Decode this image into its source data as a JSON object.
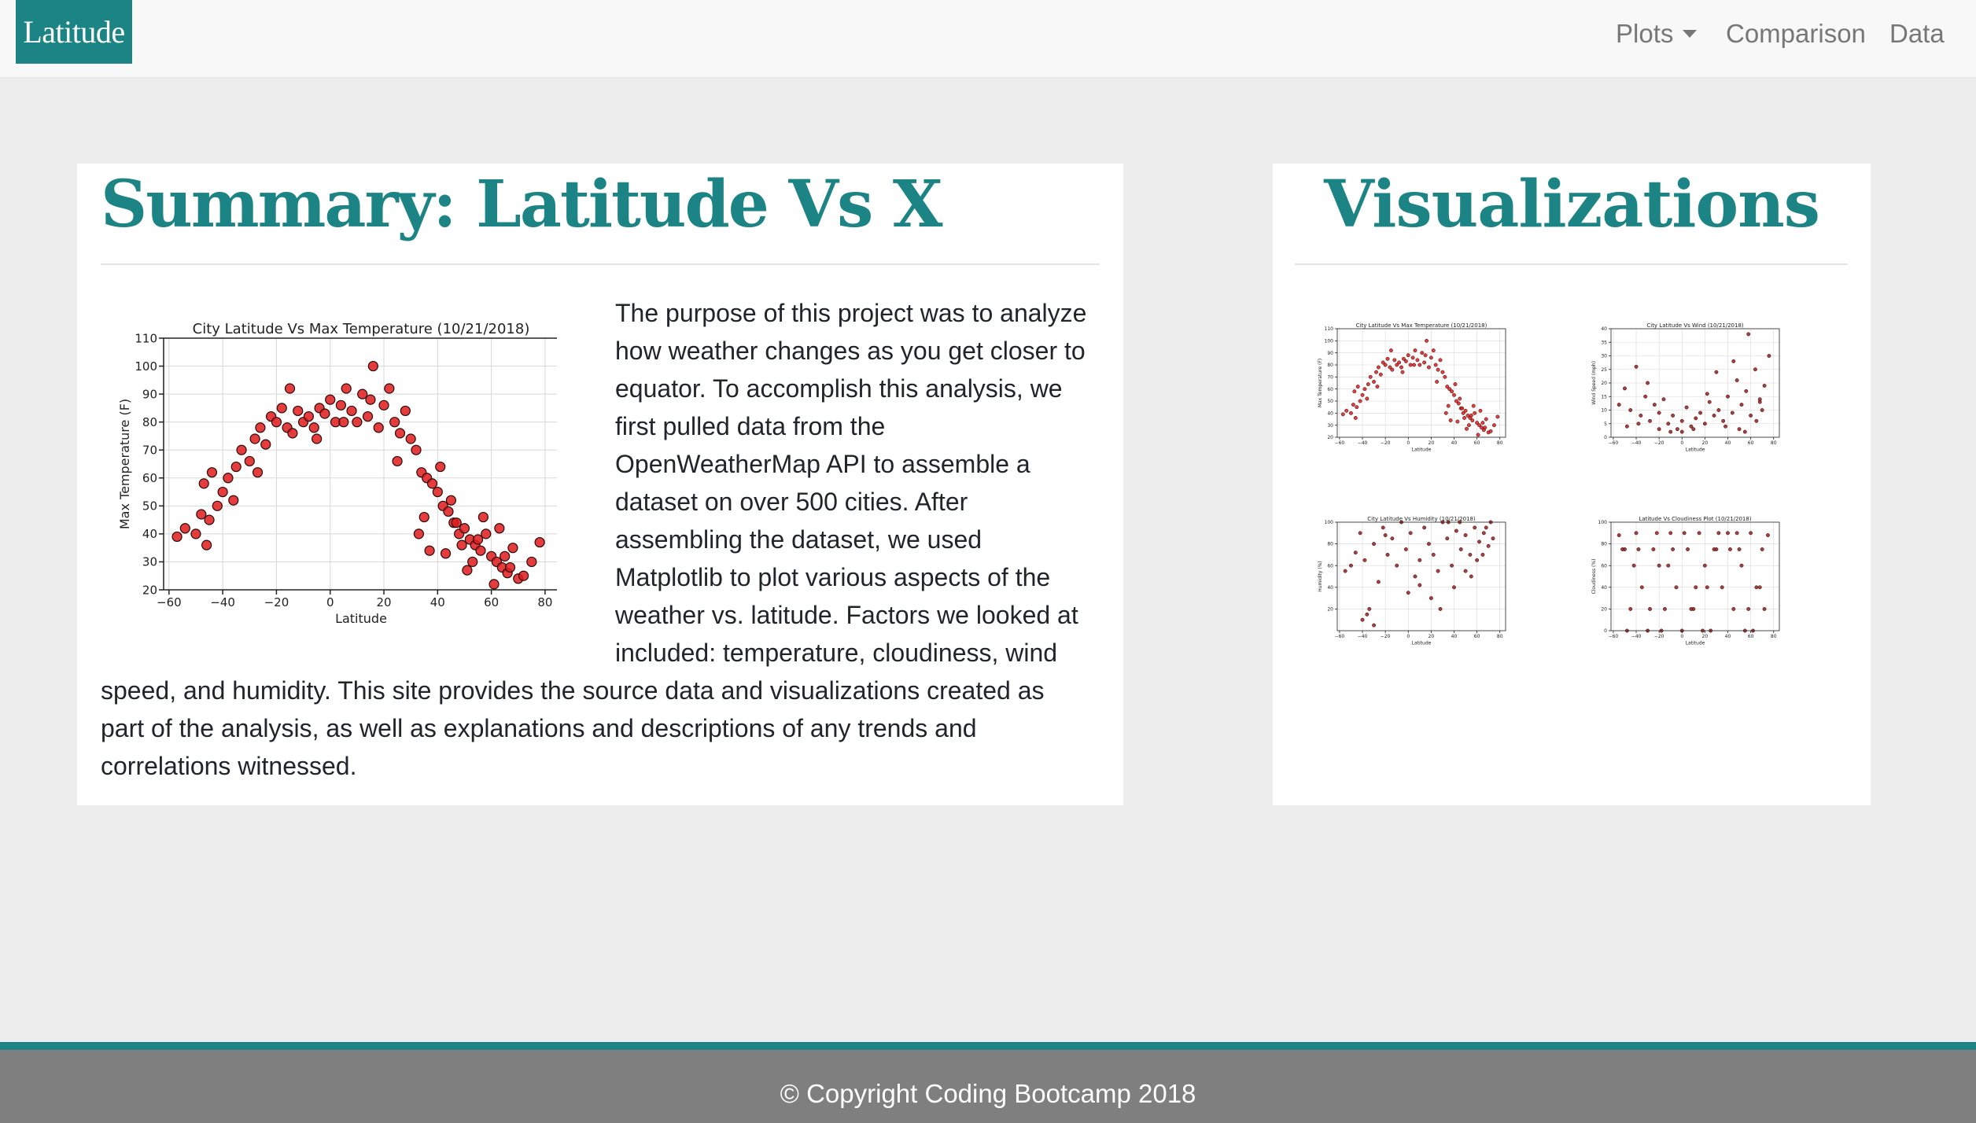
{
  "navbar": {
    "brand": "Latitude",
    "items": [
      {
        "label": "Plots",
        "has_dropdown": true
      },
      {
        "label": "Comparison"
      },
      {
        "label": "Data"
      }
    ]
  },
  "summary": {
    "title": "Summary: Latitude Vs X",
    "paragraph_lines": [
      "The purpose of this project was to analyze",
      "how weather changes as you get closer to",
      "equator. To accomplish this analysis, we",
      "first pulled data from the",
      "OpenWeatherMap API to assemble a",
      "dataset on over 500 cities. After",
      "assembling the dataset, we used",
      "Matplotlib to plot various aspects of the",
      "weather vs. latitude. Factors we looked at",
      "included: temperature, cloudiness, wind",
      "speed, and humidity. This site provides the source data and visualizations created as",
      "part of the analysis, as well as explanations and descriptions of any trends and",
      "correlations witnessed."
    ]
  },
  "visualizations": {
    "title": "Visualizations"
  },
  "chart_data": [
    {
      "id": "temp",
      "type": "scatter",
      "title": "City Latitude Vs Max Temperature (10/21/2018)",
      "xlabel": "Latitude",
      "ylabel": "Max Temperature (F)",
      "xlim": [
        -62,
        85
      ],
      "ylim": [
        20,
        110
      ],
      "xticks": [
        -60,
        -40,
        -20,
        0,
        20,
        40,
        60,
        80
      ],
      "yticks": [
        20,
        30,
        40,
        50,
        60,
        70,
        80,
        90,
        100,
        110
      ],
      "grid": true,
      "marker_color": "#e01b1b",
      "x": [
        -57,
        -54,
        -50,
        -48,
        -47,
        -45,
        -44,
        -42,
        -40,
        -38,
        -35,
        -33,
        -30,
        -28,
        -26,
        -24,
        -22,
        -20,
        -18,
        -16,
        -14,
        -12,
        -10,
        -8,
        -6,
        -4,
        -2,
        0,
        2,
        4,
        6,
        8,
        10,
        12,
        14,
        16,
        18,
        20,
        22,
        24,
        26,
        28,
        30,
        32,
        34,
        36,
        38,
        40,
        42,
        44,
        46,
        48,
        50,
        52,
        54,
        56,
        58,
        60,
        62,
        64,
        66,
        68,
        70,
        72,
        75,
        78,
        -46,
        -36,
        -27,
        -15,
        -5,
        5,
        15,
        25,
        35,
        45,
        55,
        65,
        43,
        47,
        53,
        57,
        61,
        63,
        67,
        33,
        37,
        41,
        49,
        51
      ],
      "y": [
        39,
        42,
        40,
        47,
        58,
        45,
        62,
        50,
        55,
        60,
        64,
        70,
        66,
        74,
        78,
        72,
        82,
        80,
        85,
        78,
        76,
        84,
        80,
        82,
        78,
        85,
        83,
        88,
        80,
        86,
        92,
        84,
        80,
        90,
        82,
        100,
        78,
        86,
        92,
        80,
        76,
        84,
        74,
        70,
        62,
        60,
        58,
        55,
        50,
        48,
        44,
        40,
        42,
        38,
        36,
        34,
        40,
        32,
        30,
        28,
        26,
        35,
        24,
        25,
        30,
        37,
        36,
        52,
        62,
        92,
        74,
        80,
        88,
        66,
        46,
        52,
        38,
        32,
        33,
        44,
        30,
        46,
        22,
        42,
        28,
        40,
        34,
        64,
        36,
        27
      ]
    },
    {
      "id": "wind",
      "type": "scatter",
      "title": "City Latitude Vs Wind (10/21/2018)",
      "xlabel": "Latitude",
      "ylabel": "Wind Speed (mph)",
      "xlim": [
        -62,
        85
      ],
      "ylim": [
        0,
        40
      ],
      "xticks": [
        -60,
        -40,
        -20,
        0,
        20,
        40,
        60,
        80
      ],
      "yticks": [
        0,
        5,
        10,
        15,
        20,
        25,
        30,
        35,
        40
      ],
      "grid": true,
      "marker_color": "#9b1c1c",
      "x": [
        -55,
        -50,
        -45,
        -40,
        -36,
        -32,
        -28,
        -24,
        -20,
        -16,
        -12,
        -8,
        -4,
        0,
        4,
        8,
        12,
        16,
        20,
        24,
        28,
        32,
        36,
        40,
        44,
        48,
        52,
        56,
        60,
        64,
        68,
        72,
        76,
        -48,
        -30,
        -10,
        10,
        30,
        50,
        70,
        58,
        -38,
        22,
        45,
        65,
        0,
        -20,
        38,
        55,
        68
      ],
      "y": [
        12,
        18,
        10,
        26,
        8,
        15,
        6,
        12,
        9,
        14,
        5,
        8,
        3,
        6,
        11,
        4,
        7,
        9,
        5,
        13,
        8,
        10,
        6,
        15,
        9,
        21,
        12,
        17,
        8,
        25,
        14,
        19,
        30,
        4,
        20,
        2,
        3,
        24,
        3,
        10,
        38,
        5,
        16,
        28,
        6,
        2,
        3,
        4,
        2,
        13
      ]
    },
    {
      "id": "humidity",
      "type": "scatter",
      "title": "City Latitude Vs Humidity (10/21/2018)",
      "xlabel": "Latitude",
      "ylabel": "Humidity (%)",
      "xlim": [
        -62,
        85
      ],
      "ylim": [
        0,
        100
      ],
      "xticks": [
        -60,
        -40,
        -20,
        0,
        20,
        40,
        60,
        80
      ],
      "yticks": [
        20,
        40,
        60,
        80,
        100
      ],
      "grid": true,
      "marker_color": "#9b1c1c",
      "x": [
        -55,
        -50,
        -46,
        -42,
        -38,
        -34,
        -30,
        -26,
        -22,
        -18,
        -14,
        -10,
        -6,
        -2,
        2,
        6,
        10,
        14,
        18,
        22,
        26,
        30,
        34,
        38,
        42,
        46,
        50,
        54,
        58,
        62,
        66,
        70,
        74,
        -40,
        -36,
        -30,
        0,
        20,
        40,
        60,
        65,
        50,
        45,
        55,
        35,
        -20,
        10,
        28,
        68,
        72
      ],
      "y": [
        55,
        60,
        72,
        90,
        65,
        20,
        80,
        45,
        95,
        70,
        85,
        60,
        100,
        75,
        90,
        50,
        65,
        95,
        80,
        70,
        55,
        100,
        85,
        60,
        92,
        75,
        88,
        70,
        95,
        82,
        90,
        78,
        85,
        10,
        15,
        5,
        35,
        30,
        40,
        65,
        70,
        55,
        100,
        50,
        100,
        88,
        42,
        20,
        95,
        100
      ]
    },
    {
      "id": "cloudiness",
      "type": "scatter",
      "title": "Latitude Vs Cloudiness Plot (10/21/2018)",
      "xlabel": "Latitude",
      "ylabel": "Cloudiness (%)",
      "xlim": [
        -62,
        85
      ],
      "ylim": [
        0,
        100
      ],
      "xticks": [
        -60,
        -40,
        -20,
        0,
        20,
        40,
        60,
        80
      ],
      "yticks": [
        0,
        20,
        40,
        60,
        80,
        100
      ],
      "grid": true,
      "marker_color": "#9b1c1c",
      "x": [
        -55,
        -50,
        -45,
        -40,
        -35,
        -30,
        -25,
        -20,
        -15,
        -10,
        -5,
        0,
        5,
        10,
        15,
        20,
        25,
        30,
        35,
        40,
        45,
        50,
        55,
        60,
        65,
        70,
        75,
        -48,
        -28,
        -8,
        12,
        32,
        52,
        72,
        -38,
        -18,
        2,
        22,
        42,
        62,
        -42,
        -22,
        8,
        28,
        48,
        68,
        -52,
        -12,
        18,
        58
      ],
      "y": [
        88,
        75,
        20,
        90,
        40,
        0,
        75,
        60,
        20,
        90,
        40,
        0,
        75,
        20,
        90,
        60,
        0,
        75,
        40,
        90,
        20,
        75,
        0,
        90,
        40,
        75,
        88,
        0,
        20,
        75,
        40,
        90,
        60,
        20,
        75,
        0,
        90,
        40,
        75,
        0,
        60,
        90,
        20,
        75,
        90,
        40,
        75,
        60,
        0,
        20
      ]
    }
  ]
}
